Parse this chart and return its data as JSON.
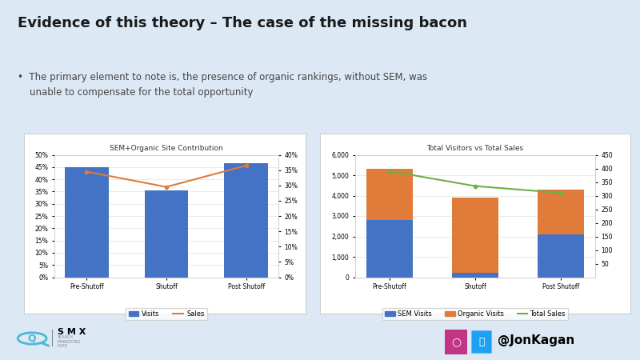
{
  "bg_color": "#dce9f5",
  "top_bar_color": "#4bb8d4",
  "title": "Evidence of this theory – The case of the missing bacon",
  "title_color": "#1a1a1a",
  "bullet_text": "•  The primary element to note is, the presence of organic rankings, without SEM, was\n    unable to compensate for the total opportunity",
  "bullet_color": "#444444",
  "chart1": {
    "title": "SEM+Organic Site Contribution",
    "categories": [
      "Pre-Shutoff",
      "Shutoff",
      "Post Shutoff"
    ],
    "visits_pct": [
      0.45,
      0.355,
      0.465
    ],
    "sales_pct": [
      0.345,
      0.295,
      0.365
    ],
    "bar_color": "#4472c4",
    "line_color": "#e07b39",
    "yleft_max": 0.5,
    "yleft_ticks": [
      0,
      0.05,
      0.1,
      0.15,
      0.2,
      0.25,
      0.3,
      0.35,
      0.4,
      0.45,
      0.5
    ],
    "yright_max": 0.4,
    "yright_ticks": [
      0,
      0.05,
      0.1,
      0.15,
      0.2,
      0.25,
      0.3,
      0.35,
      0.4
    ]
  },
  "chart2": {
    "title": "Total Visitors vs Total Sales",
    "categories": [
      "Pre-Shutoff",
      "Shutoff",
      "Post Shutoff"
    ],
    "sem_visits": [
      2800,
      200,
      2100
    ],
    "organic_visits": [
      2500,
      3700,
      2200
    ],
    "total_sales": [
      390,
      335,
      310
    ],
    "bar_color_sem": "#4472c4",
    "bar_color_organic": "#e07b39",
    "line_color_sales": "#70ad47",
    "yleft_max": 6000,
    "yleft_ticks": [
      0,
      1000,
      2000,
      3000,
      4000,
      5000,
      6000
    ],
    "yright_max": 450,
    "yright_ticks": [
      50,
      100,
      150,
      200,
      250,
      300,
      350,
      400,
      450
    ]
  },
  "smx_color": "#4bb8d4",
  "twitter_color": "#1da1f2",
  "instagram_gradient": "#c13584",
  "handle": "@JonKagan"
}
